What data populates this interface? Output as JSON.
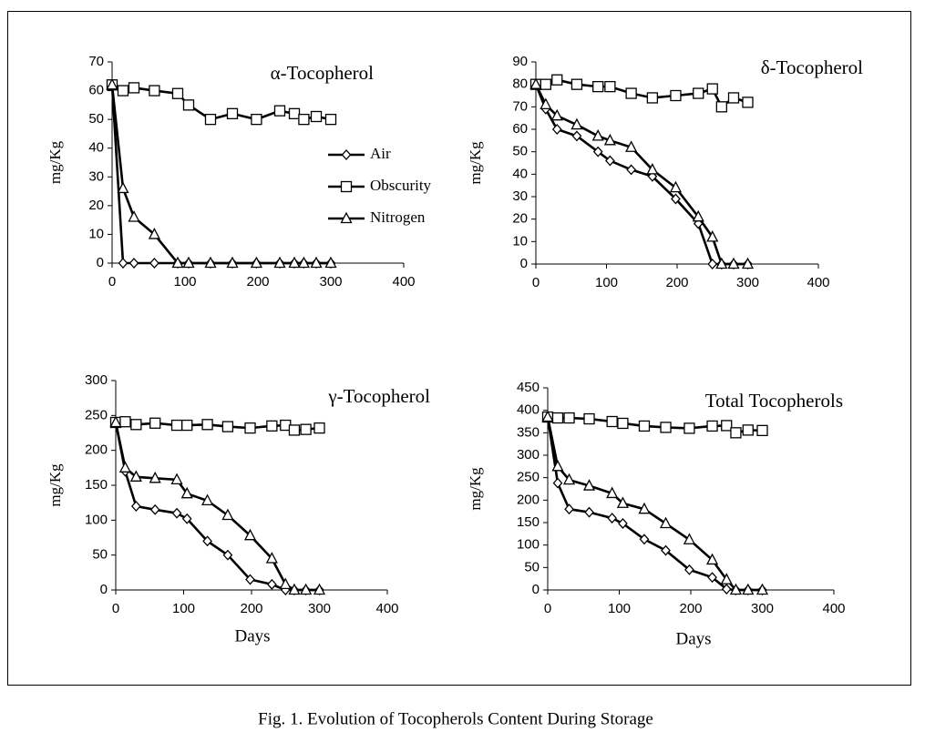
{
  "caption": "Fig. 1. Evolution of Tocopherols Content During Storage",
  "chart_data": [
    {
      "type": "line",
      "title": "α-Tocopherol",
      "ylabel": "mg/Kg",
      "legend": true,
      "x": [
        0,
        15,
        30,
        58,
        90,
        105,
        135,
        165,
        198,
        230,
        250,
        263,
        280,
        300
      ],
      "xlim": [
        0,
        400
      ],
      "xticks": [
        0,
        100,
        200,
        300,
        400
      ],
      "ylim": [
        0,
        70
      ],
      "yticks": [
        0,
        10,
        20,
        30,
        40,
        50,
        60,
        70
      ],
      "series": [
        {
          "name": "Air",
          "color": "#000000",
          "marker": "diamond",
          "values": [
            62,
            0,
            0,
            0,
            0,
            0,
            0,
            0,
            0,
            0,
            0,
            0,
            0,
            0
          ]
        },
        {
          "name": "Obscurity",
          "color": "#000000",
          "marker": "square",
          "values": [
            62,
            60,
            61,
            60,
            59,
            55,
            50,
            52,
            50,
            53,
            52,
            50,
            51,
            50
          ]
        },
        {
          "name": "Nitrogen",
          "color": "#000000",
          "marker": "triangle",
          "values": [
            62,
            26,
            16,
            10,
            0,
            0,
            0,
            0,
            0,
            0,
            0,
            0,
            0,
            0
          ]
        }
      ]
    },
    {
      "type": "line",
      "title": "δ-Tocopherol",
      "ylabel": "mg/Kg",
      "x": [
        0,
        14,
        30,
        58,
        88,
        105,
        135,
        165,
        198,
        230,
        250,
        263,
        280,
        300
      ],
      "xlim": [
        0,
        400
      ],
      "xticks": [
        0,
        100,
        200,
        300,
        400
      ],
      "ylim": [
        0,
        90
      ],
      "yticks": [
        0,
        10,
        20,
        30,
        40,
        50,
        60,
        70,
        80,
        90
      ],
      "series": [
        {
          "color": "#000000",
          "marker": "diamond",
          "values": [
            80,
            69,
            60,
            57,
            50,
            46,
            42,
            39,
            29,
            18,
            0,
            0,
            0,
            0
          ]
        },
        {
          "color": "#000000",
          "marker": "square",
          "values": [
            80,
            80,
            82,
            80,
            79,
            79,
            76,
            74,
            75,
            76,
            78,
            70,
            74,
            72
          ]
        },
        {
          "color": "#000000",
          "marker": "triangle",
          "values": [
            80,
            71,
            66,
            62,
            57,
            55,
            52,
            42,
            34,
            21,
            12,
            0,
            0,
            0
          ]
        }
      ]
    },
    {
      "type": "line",
      "title": "γ-Tocopherol",
      "ylabel": "mg/Kg",
      "xlabel": "Days",
      "x": [
        0,
        14,
        30,
        58,
        90,
        105,
        135,
        165,
        198,
        230,
        250,
        263,
        280,
        300
      ],
      "xlim": [
        0,
        400
      ],
      "xticks": [
        0,
        100,
        200,
        300,
        400
      ],
      "ylim": [
        0,
        300
      ],
      "yticks": [
        0,
        50,
        100,
        150,
        200,
        250,
        300
      ],
      "series": [
        {
          "color": "#000000",
          "marker": "diamond",
          "values": [
            240,
            170,
            120,
            115,
            110,
            102,
            70,
            50,
            15,
            8,
            0,
            0,
            0,
            0
          ]
        },
        {
          "color": "#000000",
          "marker": "square",
          "values": [
            240,
            241,
            237,
            239,
            236,
            236,
            237,
            234,
            232,
            235,
            236,
            229,
            230,
            232
          ]
        },
        {
          "color": "#000000",
          "marker": "triangle",
          "values": [
            240,
            175,
            162,
            160,
            158,
            138,
            128,
            107,
            78,
            45,
            8,
            0,
            0,
            0
          ]
        }
      ]
    },
    {
      "type": "line",
      "title": "Total Tocopherols",
      "ylabel": "mg/Kg",
      "xlabel": "Days",
      "x": [
        0,
        14,
        30,
        58,
        90,
        105,
        135,
        165,
        198,
        230,
        250,
        263,
        280,
        300
      ],
      "xlim": [
        0,
        400
      ],
      "xticks": [
        0,
        100,
        200,
        300,
        400
      ],
      "ylim": [
        0,
        450
      ],
      "yticks": [
        0,
        50,
        100,
        150,
        200,
        250,
        300,
        350,
        400,
        450
      ],
      "series": [
        {
          "color": "#000000",
          "marker": "diamond",
          "values": [
            385,
            238,
            180,
            173,
            160,
            148,
            113,
            88,
            45,
            28,
            2,
            0,
            0,
            0
          ]
        },
        {
          "color": "#000000",
          "marker": "square",
          "values": [
            385,
            383,
            383,
            381,
            375,
            371,
            365,
            362,
            360,
            365,
            366,
            350,
            356,
            355
          ]
        },
        {
          "color": "#000000",
          "marker": "triangle",
          "values": [
            385,
            275,
            245,
            232,
            215,
            193,
            180,
            148,
            112,
            67,
            23,
            0,
            0,
            0
          ]
        }
      ]
    }
  ]
}
